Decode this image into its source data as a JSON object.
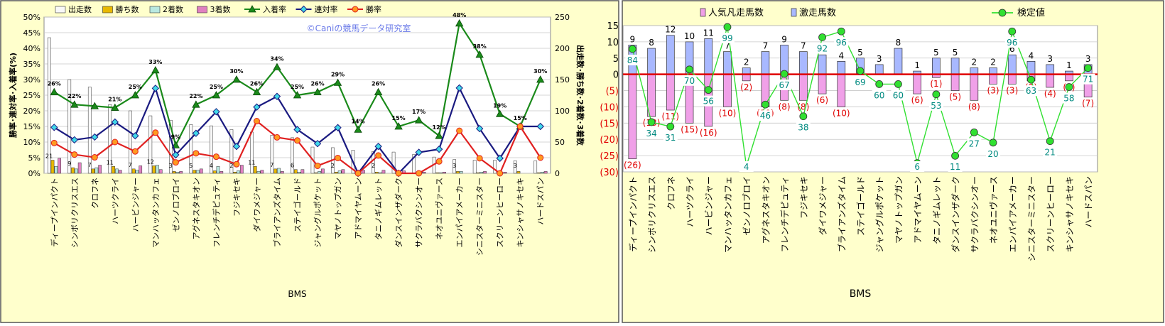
{
  "chart_data": [
    {
      "type": "bar+line",
      "title": "",
      "watermark": "©Caniの競馬データ研究室",
      "xlabel": "BMS",
      "ylabel_left": "勝率･連対率･入着率(%)",
      "ylabel_right": "出走数･勝ち数･2着数･3着数",
      "ylim_left": [
        0,
        50
      ],
      "ylim_right": [
        0,
        250
      ],
      "yticks_left": [
        "0%",
        "5%",
        "10%",
        "15%",
        "20%",
        "25%",
        "30%",
        "35%",
        "40%",
        "45%",
        "50%"
      ],
      "yticks_right": [
        "0",
        "50",
        "100",
        "150",
        "200",
        "250"
      ],
      "legend_position": "top",
      "categories": [
        "ディープインパクト",
        "シンボリクリスエス",
        "クロフネ",
        "ハーツクライ",
        "ハービンジャー",
        "マンハッタンカフェ",
        "ゼンノロブロイ",
        "アグネスタキオン",
        "フレンチデピュティ",
        "フジキセキ",
        "ダイワメジャー",
        "ブライアンズタイム",
        "ステイゴールド",
        "ジャングルポケット",
        "マヤノトップガン",
        "アドマイヤムーン",
        "タニノギムレット",
        "ダンスインザダーク",
        "サクラバクシンオー",
        "ネオユニヴァース",
        "エンパイアメーカー",
        "シニスターミニスター",
        "スクリーンヒーロー",
        "キンシャサノキセキ",
        "ハードスパン"
      ],
      "bar_series": [
        {
          "name": "出走数",
          "color": "#f8f8f8",
          "values": [
            217,
            150,
            138,
            110,
            100,
            92,
            85,
            78,
            76,
            70,
            66,
            61,
            57,
            42,
            41,
            37,
            35,
            34,
            30,
            26,
            22,
            21,
            21,
            20,
            20
          ]
        },
        {
          "name": "勝ち数",
          "color": "#e8b800",
          "values": [
            21,
            9,
            7,
            11,
            7,
            12,
            3,
            5,
            4,
            2,
            11,
            7,
            6,
            1,
            2,
            0,
            2,
            0,
            0,
            1,
            3,
            1,
            0,
            3,
            1
          ]
        },
        {
          "name": "2着数",
          "color": "#b8e8e0",
          "values": [
            11,
            7,
            9,
            7,
            5,
            13,
            2,
            5,
            11,
            4,
            3,
            8,
            2,
            3,
            4,
            0,
            1,
            0,
            2,
            1,
            3,
            2,
            1,
            0,
            2
          ]
        },
        {
          "name": "3着数",
          "color": "#e080c0",
          "values": [
            24,
            17,
            13,
            5,
            12,
            6,
            3,
            7,
            3,
            13,
            5,
            3,
            6,
            7,
            6,
            5,
            5,
            4,
            2,
            2,
            0,
            3,
            2,
            0,
            3
          ]
        }
      ],
      "line_series": [
        {
          "name": "入着率",
          "color": "#1a8a1a",
          "marker": "triangle",
          "values": [
            26,
            22,
            21.5,
            21,
            25,
            33,
            9,
            22,
            25,
            30,
            26,
            34,
            25,
            26,
            29,
            14,
            26,
            15,
            17,
            12,
            48,
            38,
            19,
            15,
            30
          ]
        },
        {
          "name": "連対率",
          "color": "#1a1a80",
          "marker": "diamond",
          "values": [
            14.7,
            10.7,
            11.6,
            16.4,
            12,
            27.2,
            5.9,
            12.8,
            19.7,
            8.6,
            21.2,
            24.6,
            14,
            9.5,
            14.6,
            0,
            8.6,
            0,
            6.7,
            7.7,
            27.3,
            14.3,
            4.8,
            15,
            15
          ]
        },
        {
          "name": "勝率",
          "color": "#e02020",
          "marker": "circle",
          "values": [
            9.7,
            6,
            5.1,
            10,
            7,
            13,
            3.5,
            6.4,
            5.3,
            2.9,
            16.7,
            11.5,
            10.5,
            2.4,
            4.9,
            0,
            5.7,
            0,
            0,
            3.8,
            13.6,
            4.8,
            0,
            15,
            5
          ]
        }
      ],
      "bar_labels": {
        "勝ち数": [
          "21",
          "9",
          "7",
          "11",
          "7",
          "12",
          "3",
          "5",
          "4",
          "2",
          "11",
          "7",
          "6",
          "",
          "2",
          "",
          "2",
          "",
          "",
          "",
          "3",
          "",
          "",
          "3",
          ""
        ],
        "入着率": [
          "26%",
          "22%",
          "",
          "21%",
          "25%",
          "33%",
          "9%",
          "22%",
          "25%",
          "30%",
          "26%",
          "34%",
          "25%",
          "26%",
          "29%",
          "14%",
          "26%",
          "15%",
          "17%",
          "12%",
          "48%",
          "38%",
          "19%",
          "15%",
          "30%"
        ]
      }
    },
    {
      "type": "bar+line",
      "title": "",
      "xlabel": "BMS",
      "ylim": [
        -30,
        15
      ],
      "yticks": [
        "15",
        "10",
        "5",
        "0",
        "(5)",
        "(10)",
        "(15)",
        "(20)",
        "(25)",
        "(30)"
      ],
      "legend_position": "top",
      "categories": [
        "ディープインパクト",
        "シンボリクリスエス",
        "クロフネ",
        "ハーツクライ",
        "ハービンジャー",
        "マンハッタンカフェ",
        "ゼンノロブロイ",
        "アグネスタキオン",
        "フレンチデピュティ",
        "フジキセキ",
        "ダイワメジャー",
        "ブライアンズタイム",
        "ステイゴールド",
        "ジャングルポケット",
        "マヤノトップガン",
        "アドマイヤムーン",
        "タニノギムレット",
        "ダンスインザダーク",
        "サクラバクシンオー",
        "ネオユニヴァース",
        "エンパイアメーカー",
        "シニスターミニスター",
        "スクリーンヒーロー",
        "キンシャサノキセキ",
        "ハードスパン"
      ],
      "bar_series": [
        {
          "name": "人気凡走馬数",
          "color": "#f0a0e8",
          "values": [
            -26,
            -13,
            -11,
            -15,
            -16,
            -10,
            -2,
            -10,
            -8,
            -8,
            -6,
            -10,
            0,
            0,
            0,
            -6,
            -1,
            -5,
            -8,
            -3,
            -3,
            -2,
            -4,
            -2,
            -7
          ]
        },
        {
          "name": "激走馬数",
          "color": "#a8b8ff",
          "values": [
            9,
            8,
            12,
            10,
            11,
            7,
            2,
            7,
            9,
            7,
            6,
            4,
            5,
            3,
            8,
            1,
            5,
            5,
            2,
            2,
            6,
            4,
            3,
            1,
            3
          ]
        }
      ],
      "top_labels": [
        "9",
        "8",
        "12",
        "10",
        "11",
        "7",
        "2",
        "7",
        "9",
        "7",
        "6",
        "4",
        "5",
        "3",
        "8",
        "1",
        "5",
        "5",
        "2",
        "2",
        "6",
        "4",
        "3",
        "1",
        "3"
      ],
      "bottom_labels": [
        "(26)",
        "(13)",
        "(11)",
        "(15)",
        "(16)",
        "(10)",
        "(2)",
        "(10)",
        "(8)",
        "(8)",
        "(6)",
        "(10)",
        "",
        "",
        "",
        "(6)",
        "(1)",
        "(5)",
        "(8)",
        "(3)",
        "(3)",
        "(2)",
        "(4)",
        "(2)",
        "(7)"
      ],
      "line_series": [
        {
          "name": "検定値",
          "color": "#30e030",
          "marker": "circle",
          "values": [
            84,
            34,
            31,
            70,
            56,
            99,
            4,
            46,
            67,
            38,
            92,
            96,
            69,
            60,
            60,
            6,
            53,
            11,
            27,
            20,
            96,
            63,
            21,
            58,
            71
          ]
        }
      ],
      "line_value_range": [
        0,
        100
      ]
    }
  ]
}
